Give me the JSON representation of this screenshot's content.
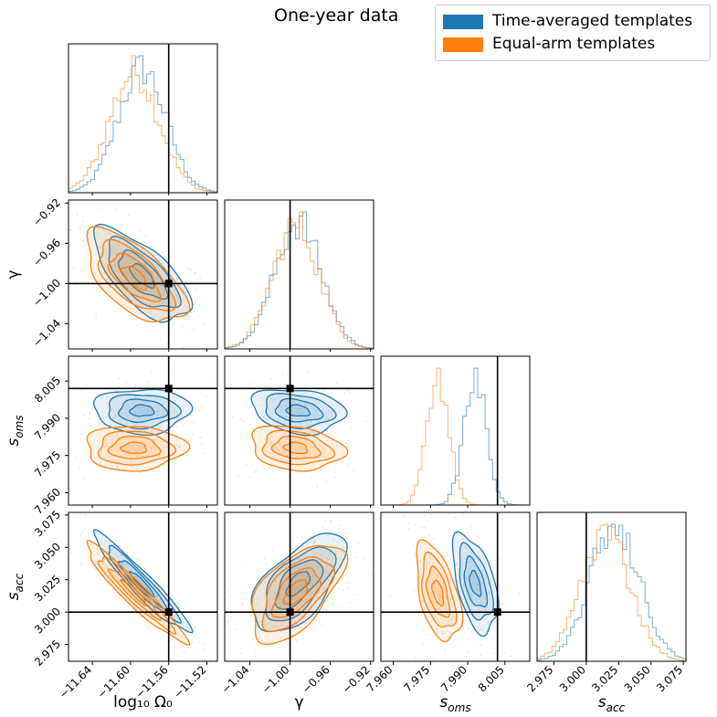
{
  "title": "One-year data",
  "legend": [
    {
      "label": "Time-averaged templates",
      "color": "#1f77b4"
    },
    {
      "label": "Equal-arm templates",
      "color": "#ff7f0e"
    }
  ],
  "colors": {
    "blue": "#1f77b4",
    "orange": "#ff7f0e",
    "truth": "#000000"
  },
  "chart_data": {
    "type": "corner",
    "parameters": [
      {
        "name": "log10_omega0",
        "label": "log₁₀ Ω₀",
        "range": [
          -11.665,
          -11.509
        ],
        "truth": -11.56,
        "ticks": [
          -11.64,
          -11.6,
          -11.56,
          -11.52
        ],
        "tick_labels": [
          "−11.64",
          "−11.60",
          "−11.56",
          "−11.52"
        ]
      },
      {
        "name": "gamma",
        "label": "γ",
        "range": [
          -1.065,
          -0.917
        ],
        "truth": -1.0,
        "ticks": [
          -1.04,
          -1.0,
          -0.96,
          -0.92
        ],
        "tick_labels": [
          "−1.04",
          "−1.00",
          "−0.96",
          "−0.92"
        ]
      },
      {
        "name": "s_oms",
        "label": "s",
        "label_sub": "oms",
        "range": [
          7.955,
          8.015
        ],
        "truth": 8.002,
        "ticks": [
          7.96,
          7.975,
          7.99,
          8.005
        ],
        "tick_labels": [
          "7.960",
          "7.975",
          "7.990",
          "8.005"
        ]
      },
      {
        "name": "s_acc",
        "label": "s",
        "label_sub": "acc",
        "range": [
          2.962,
          3.077
        ],
        "truth": 3.0,
        "ticks": [
          2.975,
          3.0,
          3.025,
          3.05,
          3.075
        ],
        "tick_labels": [
          "2.975",
          "3.000",
          "3.025",
          "3.050",
          "3.075"
        ]
      }
    ],
    "posteriors": [
      {
        "name": "Time-averaged templates",
        "color": "#1f77b4",
        "mean": [
          -11.588,
          -0.992,
          7.993,
          3.022
        ],
        "sd": [
          0.025,
          0.023,
          0.0045,
          0.019
        ],
        "corr": [
          [
            1.0,
            -0.68,
            0.0,
            -0.95
          ],
          [
            -0.68,
            1.0,
            -0.2,
            0.62
          ],
          [
            0.0,
            -0.2,
            1.0,
            -0.5
          ],
          [
            -0.95,
            0.62,
            -0.5,
            1.0
          ]
        ]
      },
      {
        "name": "Equal-arm templates",
        "color": "#ff7f0e",
        "mean": [
          -11.596,
          -0.994,
          7.978,
          3.015
        ],
        "sd": [
          0.026,
          0.023,
          0.0045,
          0.019
        ],
        "corr": [
          [
            1.0,
            -0.62,
            0.0,
            -0.95
          ],
          [
            -0.62,
            1.0,
            -0.2,
            0.58
          ],
          [
            0.0,
            -0.2,
            1.0,
            -0.5
          ],
          [
            -0.95,
            0.58,
            -0.5,
            1.0
          ]
        ]
      }
    ],
    "contour_levels_sigma": [
      0.5,
      1.0,
      1.5,
      2.0
    ]
  }
}
